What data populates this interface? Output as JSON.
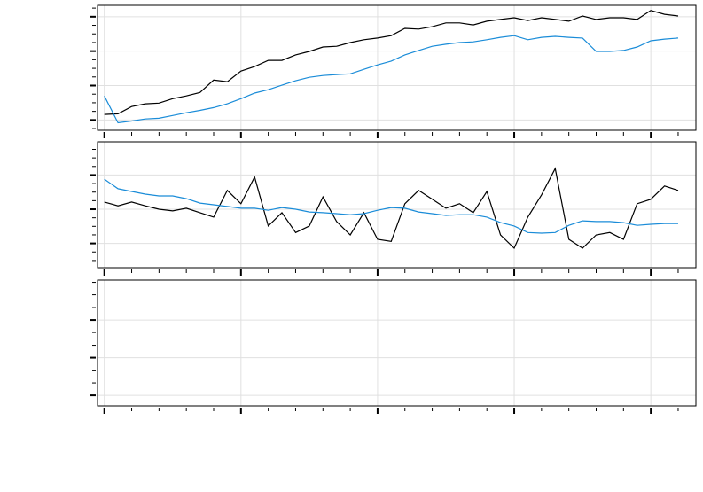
{
  "chart_data": [
    {
      "type": "line",
      "grid": true,
      "x": [
        0,
        10,
        20,
        30,
        40,
        50,
        60,
        70,
        80,
        90,
        100,
        110,
        120,
        130,
        140,
        150,
        160,
        170,
        180,
        190,
        200,
        210,
        220,
        230,
        240,
        250,
        260,
        270,
        280,
        290,
        300,
        310,
        320,
        330,
        340,
        350,
        360,
        370,
        380,
        390,
        400,
        410,
        420
      ],
      "xlim": [
        -5,
        433
      ],
      "xticks": [
        0,
        100,
        200,
        300,
        400
      ],
      "xminorticks": [
        20,
        40,
        60,
        80,
        120,
        140,
        160,
        180,
        220,
        240,
        260,
        280,
        320,
        340,
        360,
        380,
        420
      ],
      "ylim": [
        -0.3,
        3.33
      ],
      "yticks": [
        0,
        1,
        2,
        3
      ],
      "yminorticks": [
        -0.25,
        0.25,
        0.5,
        0.75,
        1.25,
        1.5,
        1.75,
        2.25,
        2.5,
        2.75,
        3.25
      ],
      "series": [
        {
          "color": "#000000",
          "values": [
            0.16,
            0.18,
            0.39,
            0.47,
            0.49,
            0.62,
            0.7,
            0.8,
            1.16,
            1.11,
            1.42,
            1.55,
            1.73,
            1.73,
            1.89,
            1.99,
            2.12,
            2.14,
            2.25,
            2.33,
            2.38,
            2.45,
            2.66,
            2.64,
            2.71,
            2.82,
            2.82,
            2.76,
            2.87,
            2.92,
            2.97,
            2.89,
            2.97,
            2.92,
            2.87,
            3.02,
            2.92,
            2.97,
            2.97,
            2.92,
            3.18,
            3.07,
            3.02
          ]
        },
        {
          "color": "#1a8cd8",
          "values": [
            0.7,
            -0.08,
            -0.03,
            0.03,
            0.05,
            0.13,
            0.21,
            0.28,
            0.36,
            0.47,
            0.62,
            0.78,
            0.88,
            1.01,
            1.14,
            1.24,
            1.29,
            1.32,
            1.34,
            1.47,
            1.6,
            1.71,
            1.89,
            2.02,
            2.14,
            2.2,
            2.25,
            2.27,
            2.33,
            2.4,
            2.45,
            2.33,
            2.4,
            2.43,
            2.4,
            2.38,
            1.99,
            1.99,
            2.02,
            2.12,
            2.3,
            2.35,
            2.38
          ]
        }
      ]
    },
    {
      "type": "line",
      "grid": true,
      "x": [
        0,
        10,
        20,
        30,
        40,
        50,
        60,
        70,
        80,
        90,
        100,
        110,
        120,
        130,
        140,
        150,
        160,
        170,
        180,
        190,
        200,
        210,
        220,
        230,
        240,
        250,
        260,
        270,
        280,
        290,
        300,
        310,
        320,
        330,
        340,
        350,
        360,
        370,
        380,
        390,
        400,
        410,
        420
      ],
      "xlim": [
        -5,
        433
      ],
      "xticks": [
        0,
        100,
        200,
        300,
        400
      ],
      "xminorticks": [
        20,
        40,
        60,
        80,
        120,
        140,
        160,
        180,
        220,
        240,
        260,
        280,
        320,
        340,
        360,
        380,
        420
      ],
      "ylim": [
        -1.71,
        1.97
      ],
      "yticks": [
        -1,
        0,
        1
      ],
      "yminorticks": [
        -1.5,
        -1.25,
        -0.75,
        -0.5,
        -0.25,
        0.25,
        0.5,
        0.75,
        1.25,
        1.5,
        1.75
      ],
      "series": [
        {
          "color": "#000000",
          "values": [
            0.21,
            0.1,
            0.21,
            0.1,
            0,
            -0.05,
            0.03,
            -0.1,
            -0.23,
            0.55,
            0.16,
            0.94,
            -0.49,
            -0.1,
            -0.68,
            -0.49,
            0.36,
            -0.36,
            -0.75,
            -0.1,
            -0.88,
            -0.94,
            0.16,
            0.55,
            0.29,
            0.03,
            0.16,
            -0.1,
            0.52,
            -0.75,
            -1.14,
            -0.23,
            0.42,
            1.19,
            -0.88,
            -1.14,
            -0.75,
            -0.68,
            -0.88,
            0.16,
            0.29,
            0.68,
            0.55
          ]
        },
        {
          "color": "#1a8cd8",
          "values": [
            0.88,
            0.6,
            0.52,
            0.44,
            0.39,
            0.39,
            0.31,
            0.18,
            0.13,
            0.08,
            0.03,
            0.03,
            -0.03,
            0.05,
            0,
            -0.08,
            -0.1,
            -0.13,
            -0.16,
            -0.13,
            -0.03,
            0.05,
            0.03,
            -0.08,
            -0.13,
            -0.18,
            -0.16,
            -0.16,
            -0.23,
            -0.39,
            -0.49,
            -0.68,
            -0.7,
            -0.68,
            -0.47,
            -0.34,
            -0.36,
            -0.36,
            -0.39,
            -0.47,
            -0.44,
            -0.42,
            -0.42
          ]
        }
      ]
    },
    {
      "type": "line",
      "grid": true,
      "x": [
        0,
        10,
        20,
        30,
        40,
        50,
        60,
        70,
        80,
        90,
        100,
        110,
        120,
        130,
        140,
        150,
        160,
        170,
        180,
        190,
        200,
        210,
        220,
        230,
        240,
        250,
        260,
        270,
        280,
        290,
        300,
        310,
        320,
        330,
        340,
        350,
        360,
        370,
        380,
        390,
        400,
        410,
        420
      ],
      "xlim": [
        -5,
        433
      ],
      "xticks": [
        0,
        100,
        200,
        300,
        400
      ],
      "xminorticks": [
        20,
        40,
        60,
        80,
        120,
        140,
        160,
        180,
        220,
        240,
        260,
        280,
        320,
        340,
        360,
        380,
        420
      ],
      "ylim": [
        -0.28,
        3.06
      ],
      "yticks": [
        0,
        1,
        2
      ],
      "yminorticks": [
        0.33,
        0.67,
        1.33,
        1.67,
        2.33,
        2.67,
        3
      ]
    },
    {
      "type": "none"
    }
  ]
}
